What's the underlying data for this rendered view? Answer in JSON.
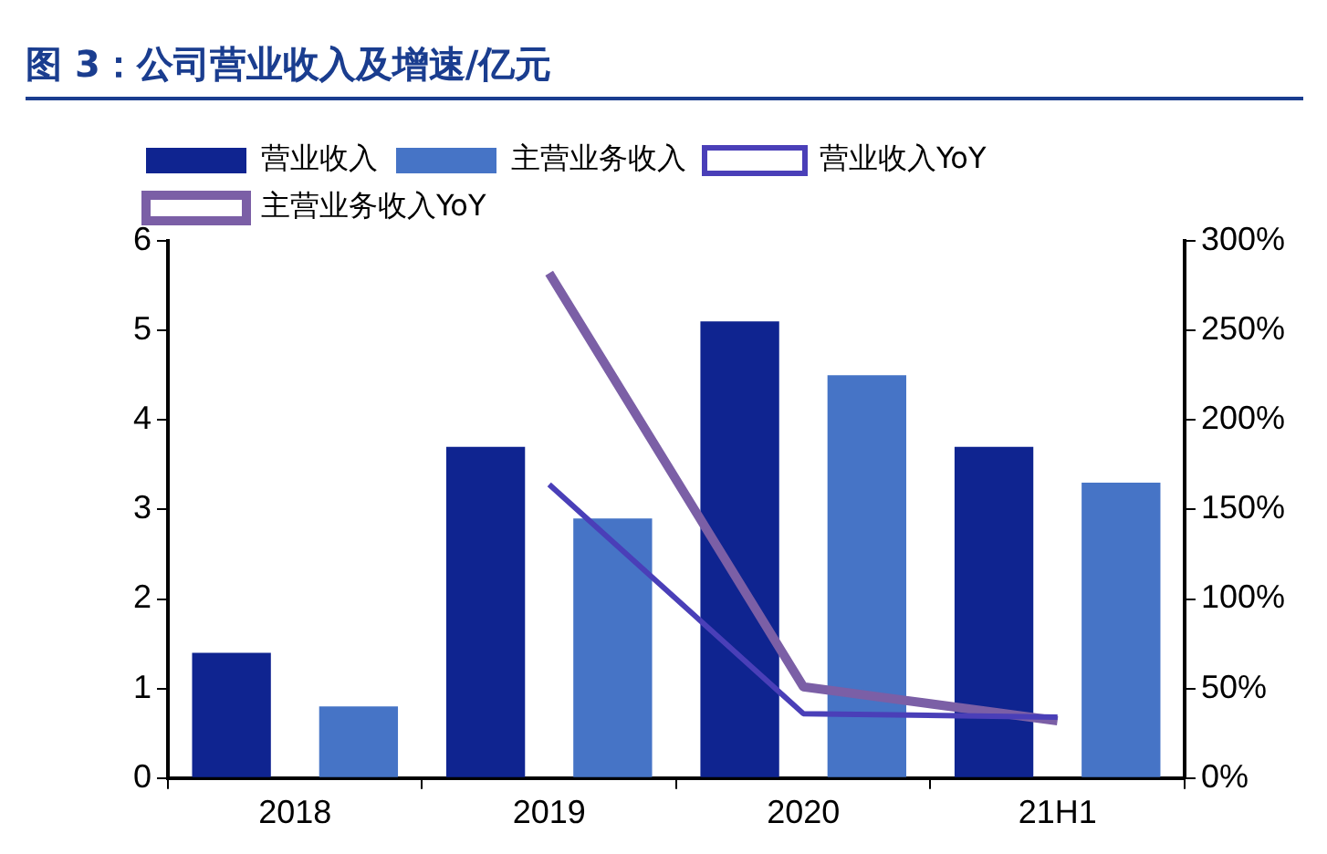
{
  "chart_data": {
    "type": "bar",
    "title": "图 3：公司营业收入及增速/亿元",
    "categories": [
      "2018",
      "2019",
      "2020",
      "21H1"
    ],
    "series": [
      {
        "name": "营业收入",
        "color": "#0f2490",
        "values": [
          1.4,
          3.7,
          5.1,
          3.7
        ]
      },
      {
        "name": "主营业务收入",
        "color": "#4674c6",
        "values": [
          0.8,
          2.9,
          4.5,
          3.3
        ]
      },
      {
        "name": "营业收入YoY",
        "type": "line",
        "axis": "y2",
        "color": "#4a3fb8",
        "values": [
          null,
          164,
          36,
          34
        ]
      },
      {
        "name": "主营业务收入YoY",
        "type": "line",
        "axis": "y2",
        "color": "#7b5fa6",
        "values": [
          null,
          282,
          51,
          32
        ]
      }
    ],
    "ylim": [
      0,
      6
    ],
    "yticks": [
      0,
      1,
      2,
      3,
      4,
      5,
      6
    ],
    "y2lim": [
      0,
      300
    ],
    "y2ticks": [
      {
        "value": 0,
        "label": "0%"
      },
      {
        "value": 50,
        "label": "50%"
      },
      {
        "value": 100,
        "label": "100%"
      },
      {
        "value": 150,
        "label": "150%"
      },
      {
        "value": 200,
        "label": "200%"
      },
      {
        "value": 250,
        "label": "250%"
      },
      {
        "value": 300,
        "label": "300%"
      }
    ],
    "grid": false,
    "legend": "top",
    "marker": "none",
    "line_style": "solid"
  }
}
